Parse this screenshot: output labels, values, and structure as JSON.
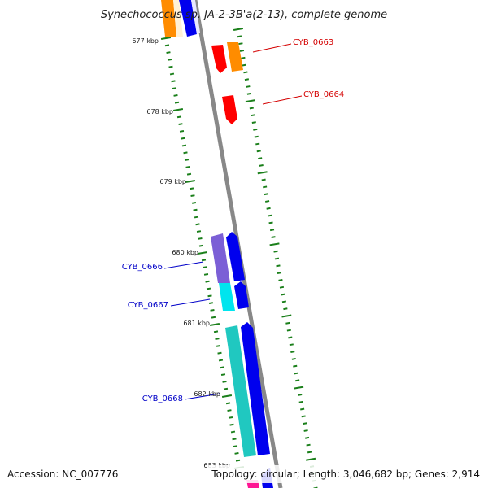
{
  "title": "Synechococcus sp. JA-2-3B'a(2-13), complete genome",
  "footer": {
    "accession": "Accession: NC_007776",
    "summary": "Topology: circular; Length: 3,046,682 bp; Genes: 2,914"
  },
  "scale_labels": [
    "677 kbp",
    "678 kbp",
    "679 kbp",
    "680 kbp",
    "681 kbp",
    "682 kbp",
    "683 kbp"
  ],
  "gene_labels": [
    {
      "text": "CYB_0663",
      "color": "#d40000",
      "strand": "forward"
    },
    {
      "text": "CYB_0664",
      "color": "#d40000",
      "strand": "forward"
    },
    {
      "text": "CYB_0666",
      "color": "#0000c8",
      "strand": "reverse"
    },
    {
      "text": "CYB_0667",
      "color": "#0000c8",
      "strand": "reverse"
    },
    {
      "text": "CYB_0668",
      "color": "#0000c8",
      "strand": "reverse"
    }
  ],
  "colors": {
    "backbone": "#888888",
    "tick": "#1a7f1a",
    "red": "#ff0000",
    "orange": "#ff8c00",
    "blue": "#0000ee",
    "purple": "#7b5fd6",
    "cyan": "#00e5ee",
    "teal": "#20c8c0",
    "magenta": "#ff1493"
  }
}
